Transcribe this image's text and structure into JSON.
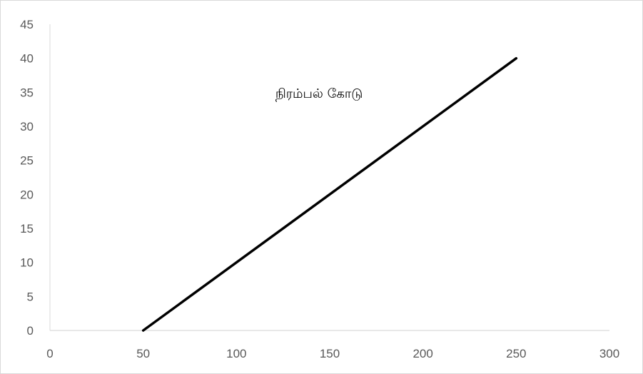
{
  "chart_data": {
    "type": "line",
    "title": "",
    "xlabel": "",
    "ylabel": "",
    "xlim": [
      0,
      300
    ],
    "ylim": [
      0,
      45
    ],
    "x_ticks": [
      0,
      50,
      100,
      150,
      200,
      250,
      300
    ],
    "y_ticks": [
      0,
      5,
      10,
      15,
      20,
      25,
      30,
      35,
      40,
      45
    ],
    "grid": false,
    "legend": "none",
    "series": [
      {
        "points": [
          {
            "x": 50,
            "y": 0
          },
          {
            "x": 250,
            "y": 40
          }
        ],
        "color": "#000000"
      }
    ],
    "annotations": [
      {
        "text": "நிரம்பல் கோடு",
        "x": 153,
        "y": 34.2
      }
    ]
  }
}
